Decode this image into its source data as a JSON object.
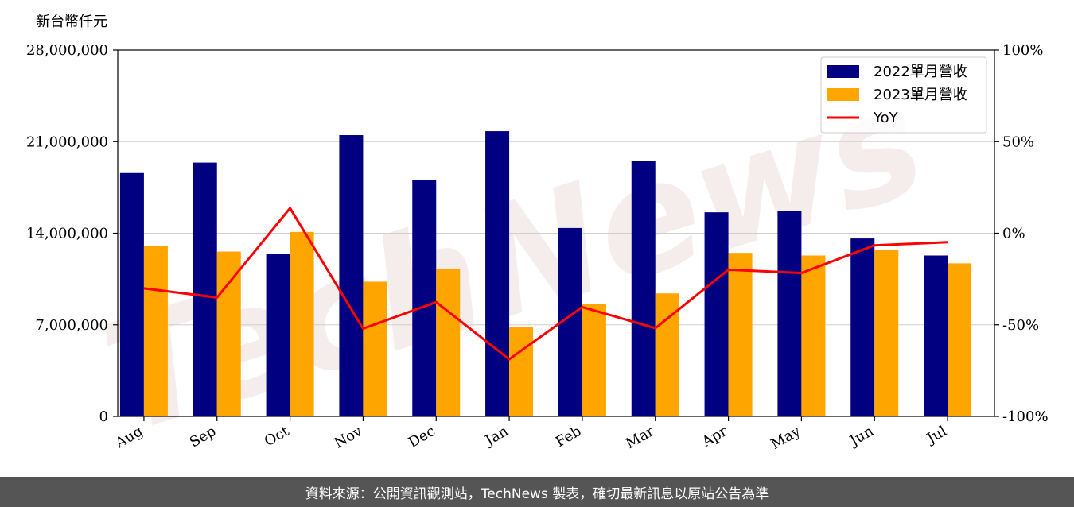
{
  "chart_data": {
    "type": "bar",
    "unit_label": "新台幣仟元",
    "categories": [
      "Aug",
      "Sep",
      "Oct",
      "Nov",
      "Dec",
      "Jan",
      "Feb",
      "Mar",
      "Apr",
      "May",
      "Jun",
      "Jul"
    ],
    "series": [
      {
        "name": "2022單月營收",
        "type": "bar",
        "color": "#000080",
        "values": [
          18600000,
          19400000,
          12400000,
          21500000,
          18100000,
          21800000,
          14400000,
          19500000,
          15600000,
          15700000,
          13600000,
          12300000
        ]
      },
      {
        "name": "2023單月營收",
        "type": "bar",
        "color": "#FFA500",
        "values": [
          13000000,
          12600000,
          14100000,
          10300000,
          11300000,
          6800000,
          8600000,
          9400000,
          12500000,
          12300000,
          12700000,
          11700000
        ]
      }
    ],
    "line_series": {
      "name": "YoY",
      "color": "#FF0000",
      "axis": "right",
      "values": [
        -30.1,
        -35.1,
        13.7,
        -52.1,
        -37.6,
        -68.8,
        -40.3,
        -51.8,
        -19.9,
        -21.7,
        -6.6,
        -4.9
      ]
    },
    "y_left": {
      "min": 0,
      "max": 28000000,
      "ticks": [
        0,
        7000000,
        14000000,
        21000000,
        28000000
      ],
      "tick_labels": [
        "0",
        "7,000,000",
        "14,000,000",
        "21,000,000",
        "28,000,000"
      ]
    },
    "y_right": {
      "min": -100,
      "max": 100,
      "ticks": [
        -100,
        -50,
        0,
        50,
        100
      ],
      "tick_labels": [
        "-100%",
        "-50%",
        "0%",
        "50%",
        "100%"
      ]
    },
    "grid": "horizontal",
    "legend_position": "top-right"
  },
  "watermark": "TechNews",
  "footer": "資料來源：公開資訊觀測站，TechNews 製表，確切最新訊息以原站公告為準"
}
